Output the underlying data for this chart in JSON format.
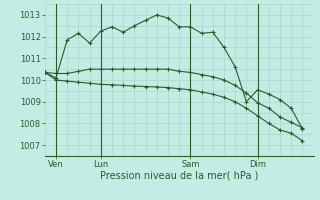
{
  "background_color": "#c5ece4",
  "grid_color": "#a8d8cc",
  "line_color": "#2a5c2a",
  "title": "Pression niveau de la mer( hPa )",
  "ylabel_values": [
    1007,
    1008,
    1009,
    1010,
    1011,
    1012,
    1013
  ],
  "x_ticks_labels": [
    "Ven",
    "Lun",
    "Sam",
    "Dim"
  ],
  "x_ticks_pos": [
    1,
    5,
    13,
    19
  ],
  "ylim": [
    1006.5,
    1013.5
  ],
  "xlim": [
    0,
    24
  ],
  "num_minor_x": 24,
  "series": [
    [
      1010.35,
      1010.1,
      1011.85,
      1012.15,
      1011.7,
      1012.25,
      1012.45,
      1012.2,
      1012.5,
      1012.75,
      1013.0,
      1012.85,
      1012.45,
      1012.45,
      1012.15,
      1012.2,
      1011.5,
      1010.6,
      1009.0,
      1009.55,
      1009.35,
      1009.1,
      1008.7,
      1007.75
    ],
    [
      1010.35,
      1010.3,
      1010.3,
      1010.4,
      1010.5,
      1010.5,
      1010.5,
      1010.5,
      1010.5,
      1010.5,
      1010.5,
      1010.5,
      1010.4,
      1010.35,
      1010.25,
      1010.15,
      1010.0,
      1009.75,
      1009.4,
      1008.95,
      1008.7,
      1008.3,
      1008.05,
      1007.8
    ],
    [
      1010.35,
      1010.0,
      1009.95,
      1009.9,
      1009.85,
      1009.8,
      1009.78,
      1009.75,
      1009.72,
      1009.7,
      1009.68,
      1009.65,
      1009.6,
      1009.55,
      1009.45,
      1009.35,
      1009.2,
      1009.0,
      1008.7,
      1008.35,
      1008.0,
      1007.7,
      1007.55,
      1007.2
    ]
  ]
}
